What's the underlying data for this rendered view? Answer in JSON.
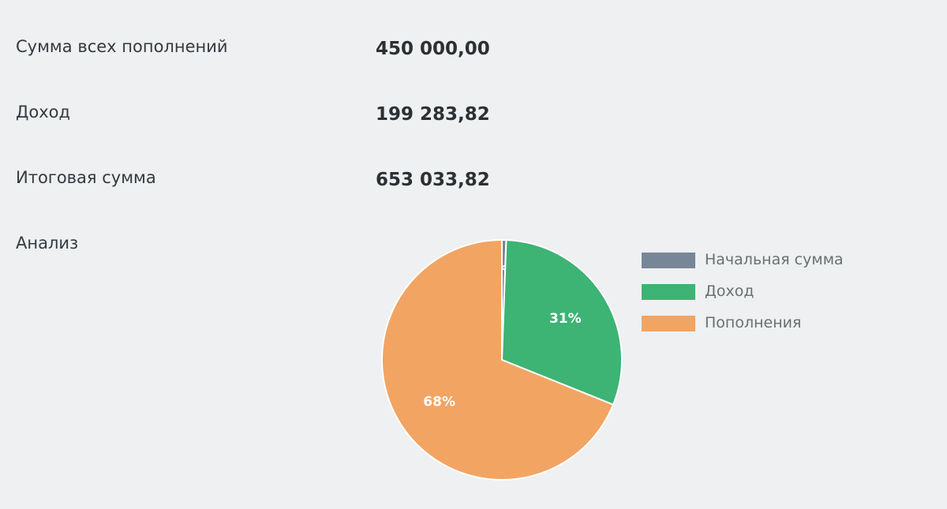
{
  "summary": {
    "deposits_label": "Сумма всех пополнений",
    "deposits_value": "450 000,00",
    "income_label": "Доход",
    "income_value": "199 283,82",
    "total_label": "Итоговая сумма",
    "total_value": "653 033,82",
    "analysis_label": "Анализ"
  },
  "chart_data": {
    "type": "pie",
    "categories": [
      "Начальная сумма",
      "Доход",
      "Пополнения"
    ],
    "values": [
      3750,
      199283.82,
      450000
    ],
    "percent_labels": [
      "1%",
      "31%",
      "68%"
    ],
    "colors": [
      "#788797",
      "#3db374",
      "#f2a463"
    ],
    "legend_position": "right"
  }
}
